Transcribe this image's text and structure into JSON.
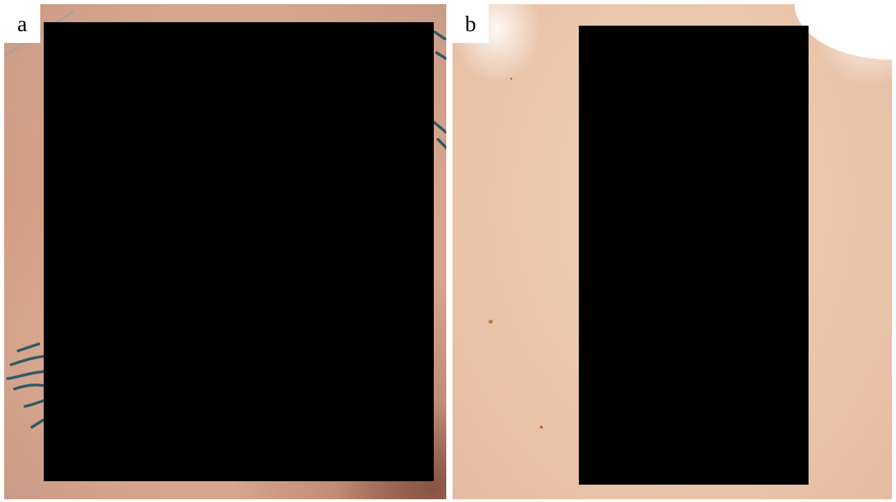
{
  "panels": [
    {
      "label": "a",
      "description_icon": "skin-photo-icon",
      "redacted": true
    },
    {
      "label": "b",
      "description_icon": "skin-photo-icon",
      "redacted": true
    }
  ],
  "colors": {
    "background": "#ffffff",
    "redaction": "#000000",
    "skin_a": "#d9a88f",
    "skin_b": "#ebc6ab",
    "tattoo_ink": "#2f5a63"
  }
}
